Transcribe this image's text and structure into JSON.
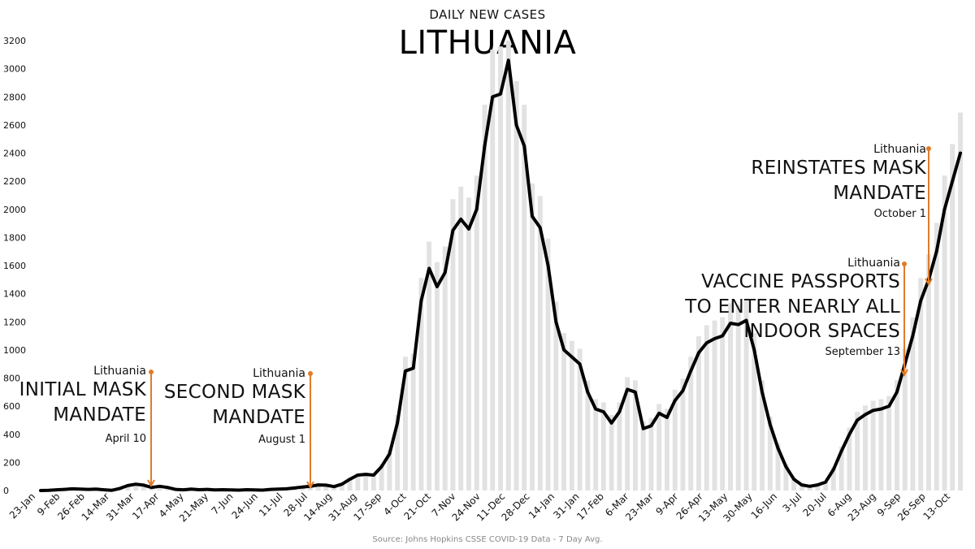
{
  "subtitle": "DAILY NEW CASES",
  "title": "LITHUANIA",
  "source": "Source: Johns Hopkins CSSE COVID-19 Data - 7 Day Avg.",
  "colors": {
    "line": "#000000",
    "bars": "#e2e2e2",
    "annotation": "#e07b28"
  },
  "annotations": [
    {
      "label": "Lithuania",
      "text": [
        "INITIAL MASK",
        "MANDATE"
      ],
      "date": "April 10"
    },
    {
      "label": "Lithuania",
      "text": [
        "SECOND MASK",
        "MANDATE"
      ],
      "date": "August 1"
    },
    {
      "label": "Lithuania",
      "text": [
        "VACCINE PASSPORTS",
        "TO ENTER NEARLY ALL",
        "INDOOR SPACES"
      ],
      "date": "September 13"
    },
    {
      "label": "Lithuania",
      "text": [
        "REINSTATES MASK",
        "MANDATE"
      ],
      "date": "October 1"
    }
  ],
  "chart_data": {
    "type": "line",
    "title": "LITHUANIA",
    "subtitle": "DAILY NEW CASES",
    "ylim": [
      0,
      3200
    ],
    "yticks": [
      0,
      200,
      400,
      600,
      800,
      1000,
      1200,
      1400,
      1600,
      1800,
      2000,
      2200,
      2400,
      2600,
      2800,
      3000,
      3200
    ],
    "xtick_labels": [
      "23-Jan",
      "9-Feb",
      "26-Feb",
      "14-Mar",
      "31-Mar",
      "17-Apr",
      "4-May",
      "21-May",
      "7-Jun",
      "24-Jun",
      "11-Jul",
      "28-Jul",
      "14-Aug",
      "31-Aug",
      "17-Sep",
      "4-Oct",
      "21-Oct",
      "7-Nov",
      "24-Nov",
      "11-Dec",
      "28-Dec",
      "14-Jan",
      "31-Jan",
      "17-Feb",
      "6-Mar",
      "23-Mar",
      "9-Apr",
      "26-Apr",
      "13-May",
      "30-May",
      "16-Jun",
      "3-Jul",
      "20-Jul",
      "6-Aug",
      "23-Aug",
      "9-Sep",
      "26-Sep",
      "13-Oct"
    ],
    "series": [
      {
        "values": [
          0,
          2,
          5,
          8,
          12,
          10,
          8,
          10,
          5,
          2,
          15,
          35,
          45,
          38,
          22,
          30,
          22,
          8,
          5,
          10,
          6,
          8,
          4,
          6,
          4,
          3,
          6,
          4,
          3,
          8,
          10,
          12,
          18,
          25,
          30,
          40,
          38,
          28,
          45,
          80,
          110,
          115,
          110,
          170,
          260,
          480,
          850,
          870,
          1350,
          1580,
          1450,
          1550,
          1850,
          1930,
          1860,
          2000,
          2450,
          2800,
          2820,
          3060,
          2600,
          2450,
          1950,
          1870,
          1600,
          1200,
          1000,
          950,
          900,
          700,
          580,
          560,
          480,
          560,
          720,
          700,
          440,
          460,
          550,
          520,
          640,
          710,
          850,
          980,
          1050,
          1080,
          1100,
          1190,
          1180,
          1210,
          1000,
          700,
          470,
          300,
          170,
          80,
          40,
          30,
          40,
          60,
          150,
          280,
          400,
          500,
          540,
          570,
          580,
          600,
          700,
          900,
          1100,
          1350,
          1500,
          1700,
          2000,
          2200,
          2400
        ]
      }
    ]
  }
}
